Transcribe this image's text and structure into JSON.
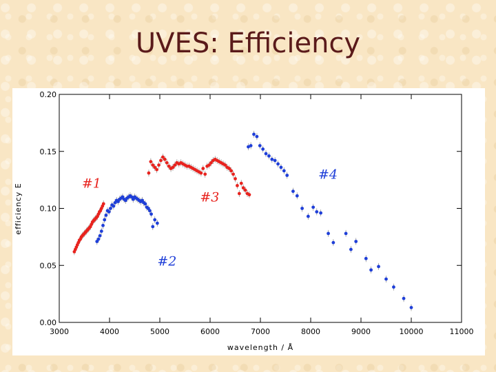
{
  "slide": {
    "title": "UVES: Efficiency"
  },
  "chart_data": {
    "type": "scatter",
    "xlabel": "wavelength  /  Å",
    "ylabel": "efficiency  E",
    "xlim": [
      3000,
      11000
    ],
    "ylim": [
      0,
      0.2
    ],
    "xticks": [
      "3000",
      "4000",
      "5000",
      "6000",
      "7000",
      "8000",
      "9000",
      "10000",
      "11000"
    ],
    "yticks": [
      "0.00",
      "0.05",
      "0.10",
      "0.15",
      "0.20"
    ],
    "grid": false,
    "colors": {
      "red": "#e8231e",
      "blue": "#1f3fd8",
      "errorbar": "#999999"
    },
    "annotations": [
      {
        "text": "#1",
        "x": 3450,
        "y": 0.118,
        "color": "#e8231e"
      },
      {
        "text": "#2",
        "x": 4950,
        "y": 0.05,
        "color": "#1f3fd8"
      },
      {
        "text": "#3",
        "x": 5800,
        "y": 0.106,
        "color": "#e8231e"
      },
      {
        "text": "#4",
        "x": 8150,
        "y": 0.126,
        "color": "#1f3fd8"
      }
    ],
    "series": [
      {
        "name": "#1",
        "color": "#e8231e",
        "x": [
          3300,
          3320,
          3340,
          3360,
          3380,
          3400,
          3420,
          3440,
          3460,
          3480,
          3500,
          3520,
          3540,
          3560,
          3580,
          3600,
          3620,
          3640,
          3660,
          3680,
          3700,
          3720,
          3740,
          3760,
          3780,
          3800,
          3820,
          3840,
          3860,
          3880
        ],
        "y": [
          0.062,
          0.064,
          0.066,
          0.068,
          0.07,
          0.072,
          0.073,
          0.075,
          0.076,
          0.077,
          0.078,
          0.079,
          0.08,
          0.081,
          0.082,
          0.083,
          0.084,
          0.086,
          0.088,
          0.089,
          0.09,
          0.091,
          0.092,
          0.093,
          0.095,
          0.097,
          0.098,
          0.1,
          0.102,
          0.104
        ]
      },
      {
        "name": "#2",
        "color": "#1f3fd8",
        "x": [
          3750,
          3780,
          3810,
          3840,
          3870,
          3900,
          3930,
          3960,
          3990,
          4020,
          4050,
          4080,
          4110,
          4140,
          4170,
          4200,
          4230,
          4260,
          4290,
          4320,
          4350,
          4380,
          4410,
          4440,
          4470,
          4500,
          4530,
          4560,
          4590,
          4620,
          4650,
          4680,
          4710,
          4740,
          4770,
          4800,
          4830,
          4860,
          4900,
          4950
        ],
        "y": [
          0.071,
          0.073,
          0.076,
          0.08,
          0.085,
          0.09,
          0.094,
          0.098,
          0.097,
          0.1,
          0.103,
          0.102,
          0.105,
          0.107,
          0.106,
          0.108,
          0.109,
          0.11,
          0.108,
          0.107,
          0.109,
          0.11,
          0.111,
          0.11,
          0.108,
          0.11,
          0.109,
          0.108,
          0.107,
          0.106,
          0.107,
          0.105,
          0.104,
          0.101,
          0.1,
          0.098,
          0.095,
          0.084,
          0.09,
          0.087
        ]
      },
      {
        "name": "#3",
        "color": "#e8231e",
        "x": [
          4780,
          4820,
          4860,
          4900,
          4940,
          4980,
          5020,
          5060,
          5100,
          5140,
          5180,
          5220,
          5260,
          5300,
          5340,
          5380,
          5420,
          5460,
          5500,
          5540,
          5580,
          5620,
          5660,
          5700,
          5740,
          5780,
          5820,
          5860,
          5900,
          5940,
          5980,
          6020,
          6060,
          6100,
          6140,
          6180,
          6220,
          6260,
          6300,
          6340,
          6380,
          6420,
          6460,
          6500,
          6540,
          6580,
          6620,
          6660,
          6700,
          6740,
          6780
        ],
        "y": [
          0.131,
          0.141,
          0.138,
          0.136,
          0.134,
          0.138,
          0.142,
          0.145,
          0.143,
          0.14,
          0.137,
          0.135,
          0.136,
          0.138,
          0.14,
          0.139,
          0.14,
          0.139,
          0.138,
          0.137,
          0.137,
          0.136,
          0.135,
          0.134,
          0.133,
          0.132,
          0.131,
          0.135,
          0.13,
          0.137,
          0.138,
          0.14,
          0.142,
          0.143,
          0.142,
          0.141,
          0.14,
          0.139,
          0.138,
          0.136,
          0.135,
          0.133,
          0.13,
          0.126,
          0.12,
          0.113,
          0.122,
          0.118,
          0.116,
          0.113,
          0.112
        ]
      },
      {
        "name": "#4",
        "color": "#1f3fd8",
        "x": [
          6760,
          6810,
          6870,
          6930,
          6990,
          7050,
          7110,
          7170,
          7230,
          7290,
          7350,
          7410,
          7470,
          7530,
          7650,
          7730,
          7830,
          7950,
          8050,
          8120,
          8200,
          8350,
          8450,
          8700,
          8800,
          8900,
          9100,
          9200,
          9350,
          9500,
          9650,
          9850,
          10000
        ],
        "y": [
          0.154,
          0.155,
          0.165,
          0.163,
          0.155,
          0.152,
          0.148,
          0.146,
          0.143,
          0.142,
          0.139,
          0.136,
          0.133,
          0.129,
          0.115,
          0.111,
          0.1,
          0.093,
          0.101,
          0.097,
          0.096,
          0.078,
          0.07,
          0.078,
          0.064,
          0.071,
          0.056,
          0.046,
          0.049,
          0.038,
          0.031,
          0.021,
          0.013
        ]
      }
    ]
  }
}
